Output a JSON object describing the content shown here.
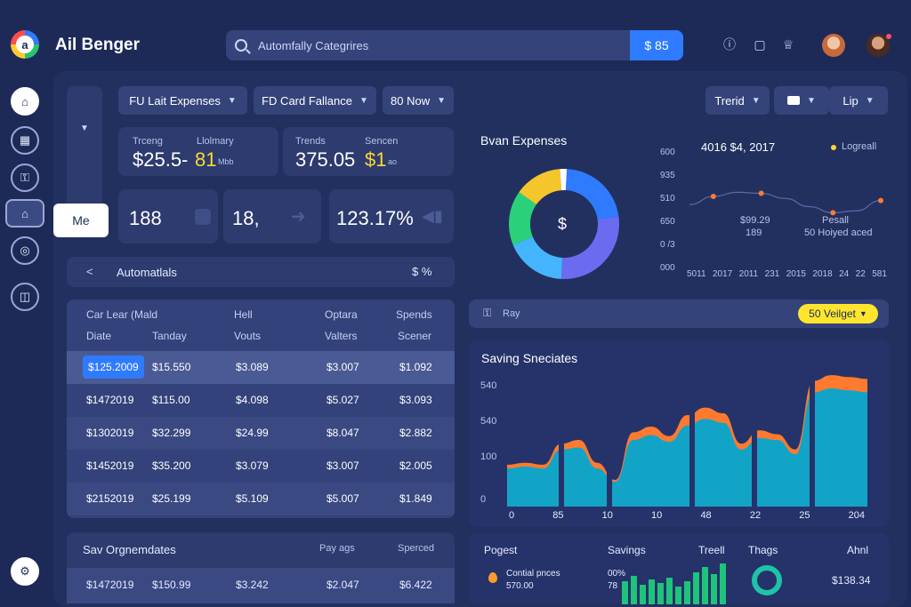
{
  "app": {
    "title": "Ail Benger",
    "logo_letter": "a"
  },
  "search": {
    "placeholder": "Automfally Categrires",
    "button": "$ 85"
  },
  "sidebar": {
    "tooltip": "Me"
  },
  "filters": {
    "f1": "FU Lait Expenses",
    "f2": "FD Card Fallance",
    "f3": "80 Now"
  },
  "right_filters": {
    "f1": "Trerid",
    "f3": "Lip"
  },
  "stats": {
    "s1_label_a": "Trceng",
    "s1_label_b": "Llolmary",
    "s1_value": "$25.5-",
    "s1_accent": "81",
    "s1_unit": "Mbb",
    "s2_label_a": "Trends",
    "s2_label_b": "Sencen",
    "s2_value": "375.05",
    "s2_accent": "$1",
    "s2_unit": "ao",
    "k1": "188",
    "k2": "18,",
    "k3": "123.17%"
  },
  "automation": {
    "label": "Automatlals",
    "right": "$ %"
  },
  "table": {
    "headers_row1": [
      "Car Lear (Mald",
      "Hell",
      "Optara",
      "Spends"
    ],
    "headers_row2": [
      "Diate",
      "Tanday",
      "Vouts",
      "Valters",
      "Scener"
    ],
    "rows": [
      [
        "$125.2009",
        "$15.550",
        "$3.089",
        "$3.007",
        "$1.092"
      ],
      [
        "$1472019",
        "$115.00",
        "$4.098",
        "$5.027",
        "$3.093"
      ],
      [
        "$1302019",
        "$32.299",
        "$24.99",
        "$8.047",
        "$2.882"
      ],
      [
        "$1452019",
        "$35.200",
        "$3.079",
        "$3.007",
        "$2.005"
      ],
      [
        "$2152019",
        "$25.199",
        "$5.109",
        "$5.007",
        "$1.849"
      ]
    ]
  },
  "bottom_table": {
    "title": "Sav Orgnemdates",
    "col1": "Pay ags",
    "col2": "Sperced",
    "row": [
      "$1472019",
      "$150.99",
      "$3.242",
      "$2.047",
      "$6.422"
    ]
  },
  "donut": {
    "title": "Bvan Expenses",
    "center": "$"
  },
  "line_chart": {
    "title": "4016 $4, 2017",
    "legend": "Logreall",
    "y_ticks": [
      "600",
      "935",
      "510",
      "650",
      "0 /3",
      "000"
    ],
    "x_ticks": [
      "5011",
      "2017",
      "2011",
      "231",
      "2015",
      "2018",
      "24",
      "22",
      "581"
    ],
    "annot1a": "$99.29",
    "annot1b": "189",
    "annot2a": "Pesall",
    "annot2b": "50 Hoiyed aced"
  },
  "key_bar": {
    "label": "Ray",
    "button": "50 Veilget"
  },
  "area_chart": {
    "title": "Saving Sneciates",
    "y_ticks": [
      "540",
      "540",
      "100",
      "0"
    ],
    "x_ticks": [
      "0",
      "85",
      "10",
      "10",
      "48",
      "22",
      "25",
      "204"
    ]
  },
  "footer": {
    "c1": "Pogest",
    "c2": "Savings",
    "c3": "Treell",
    "c4": "Thags",
    "c5": "Ahnl",
    "item": "Contial pnces",
    "item_value": "570.00",
    "pct": "00%",
    "pct2": "78",
    "total": "$138.34"
  },
  "colors": {
    "accent": "#2f7bff",
    "yellow": "#ffd633",
    "teal": "#12a4c7",
    "orange": "#ff7a2e",
    "green": "#1fc37a"
  },
  "chart_data": [
    {
      "type": "pie",
      "title": "Bvan Expenses",
      "values": [
        22,
        28,
        18,
        16,
        14,
        2
      ],
      "colors": [
        "#2f7bff",
        "#6b6bf2",
        "#45b4ff",
        "#2ad17a",
        "#f5c62b",
        "#ffffff"
      ]
    },
    {
      "type": "area",
      "title": "Saving Sneciates",
      "x": [
        0,
        1,
        2,
        3,
        4,
        5,
        6,
        7,
        8,
        9,
        10,
        11,
        12,
        13,
        14,
        15,
        16,
        17,
        18,
        19,
        20
      ],
      "series": [
        {
          "values": [
            40,
            42,
            40,
            60,
            62,
            40,
            26,
            70,
            75,
            68,
            85,
            92,
            88,
            60,
            72,
            70,
            55,
            120,
            124,
            122,
            120
          ]
        },
        {
          "values": [
            44,
            46,
            44,
            66,
            70,
            46,
            28,
            78,
            84,
            74,
            96,
            104,
            98,
            66,
            80,
            76,
            60,
            132,
            138,
            136,
            134
          ]
        }
      ],
      "ylim": [
        0,
        140
      ]
    },
    {
      "type": "line",
      "title": "4016 $4, 2017",
      "x": [
        0,
        1,
        2,
        3,
        4,
        5,
        6,
        7,
        8
      ],
      "values": [
        52,
        60,
        64,
        63,
        58,
        50,
        44,
        46,
        56
      ],
      "ylim": [
        0,
        100
      ]
    }
  ]
}
